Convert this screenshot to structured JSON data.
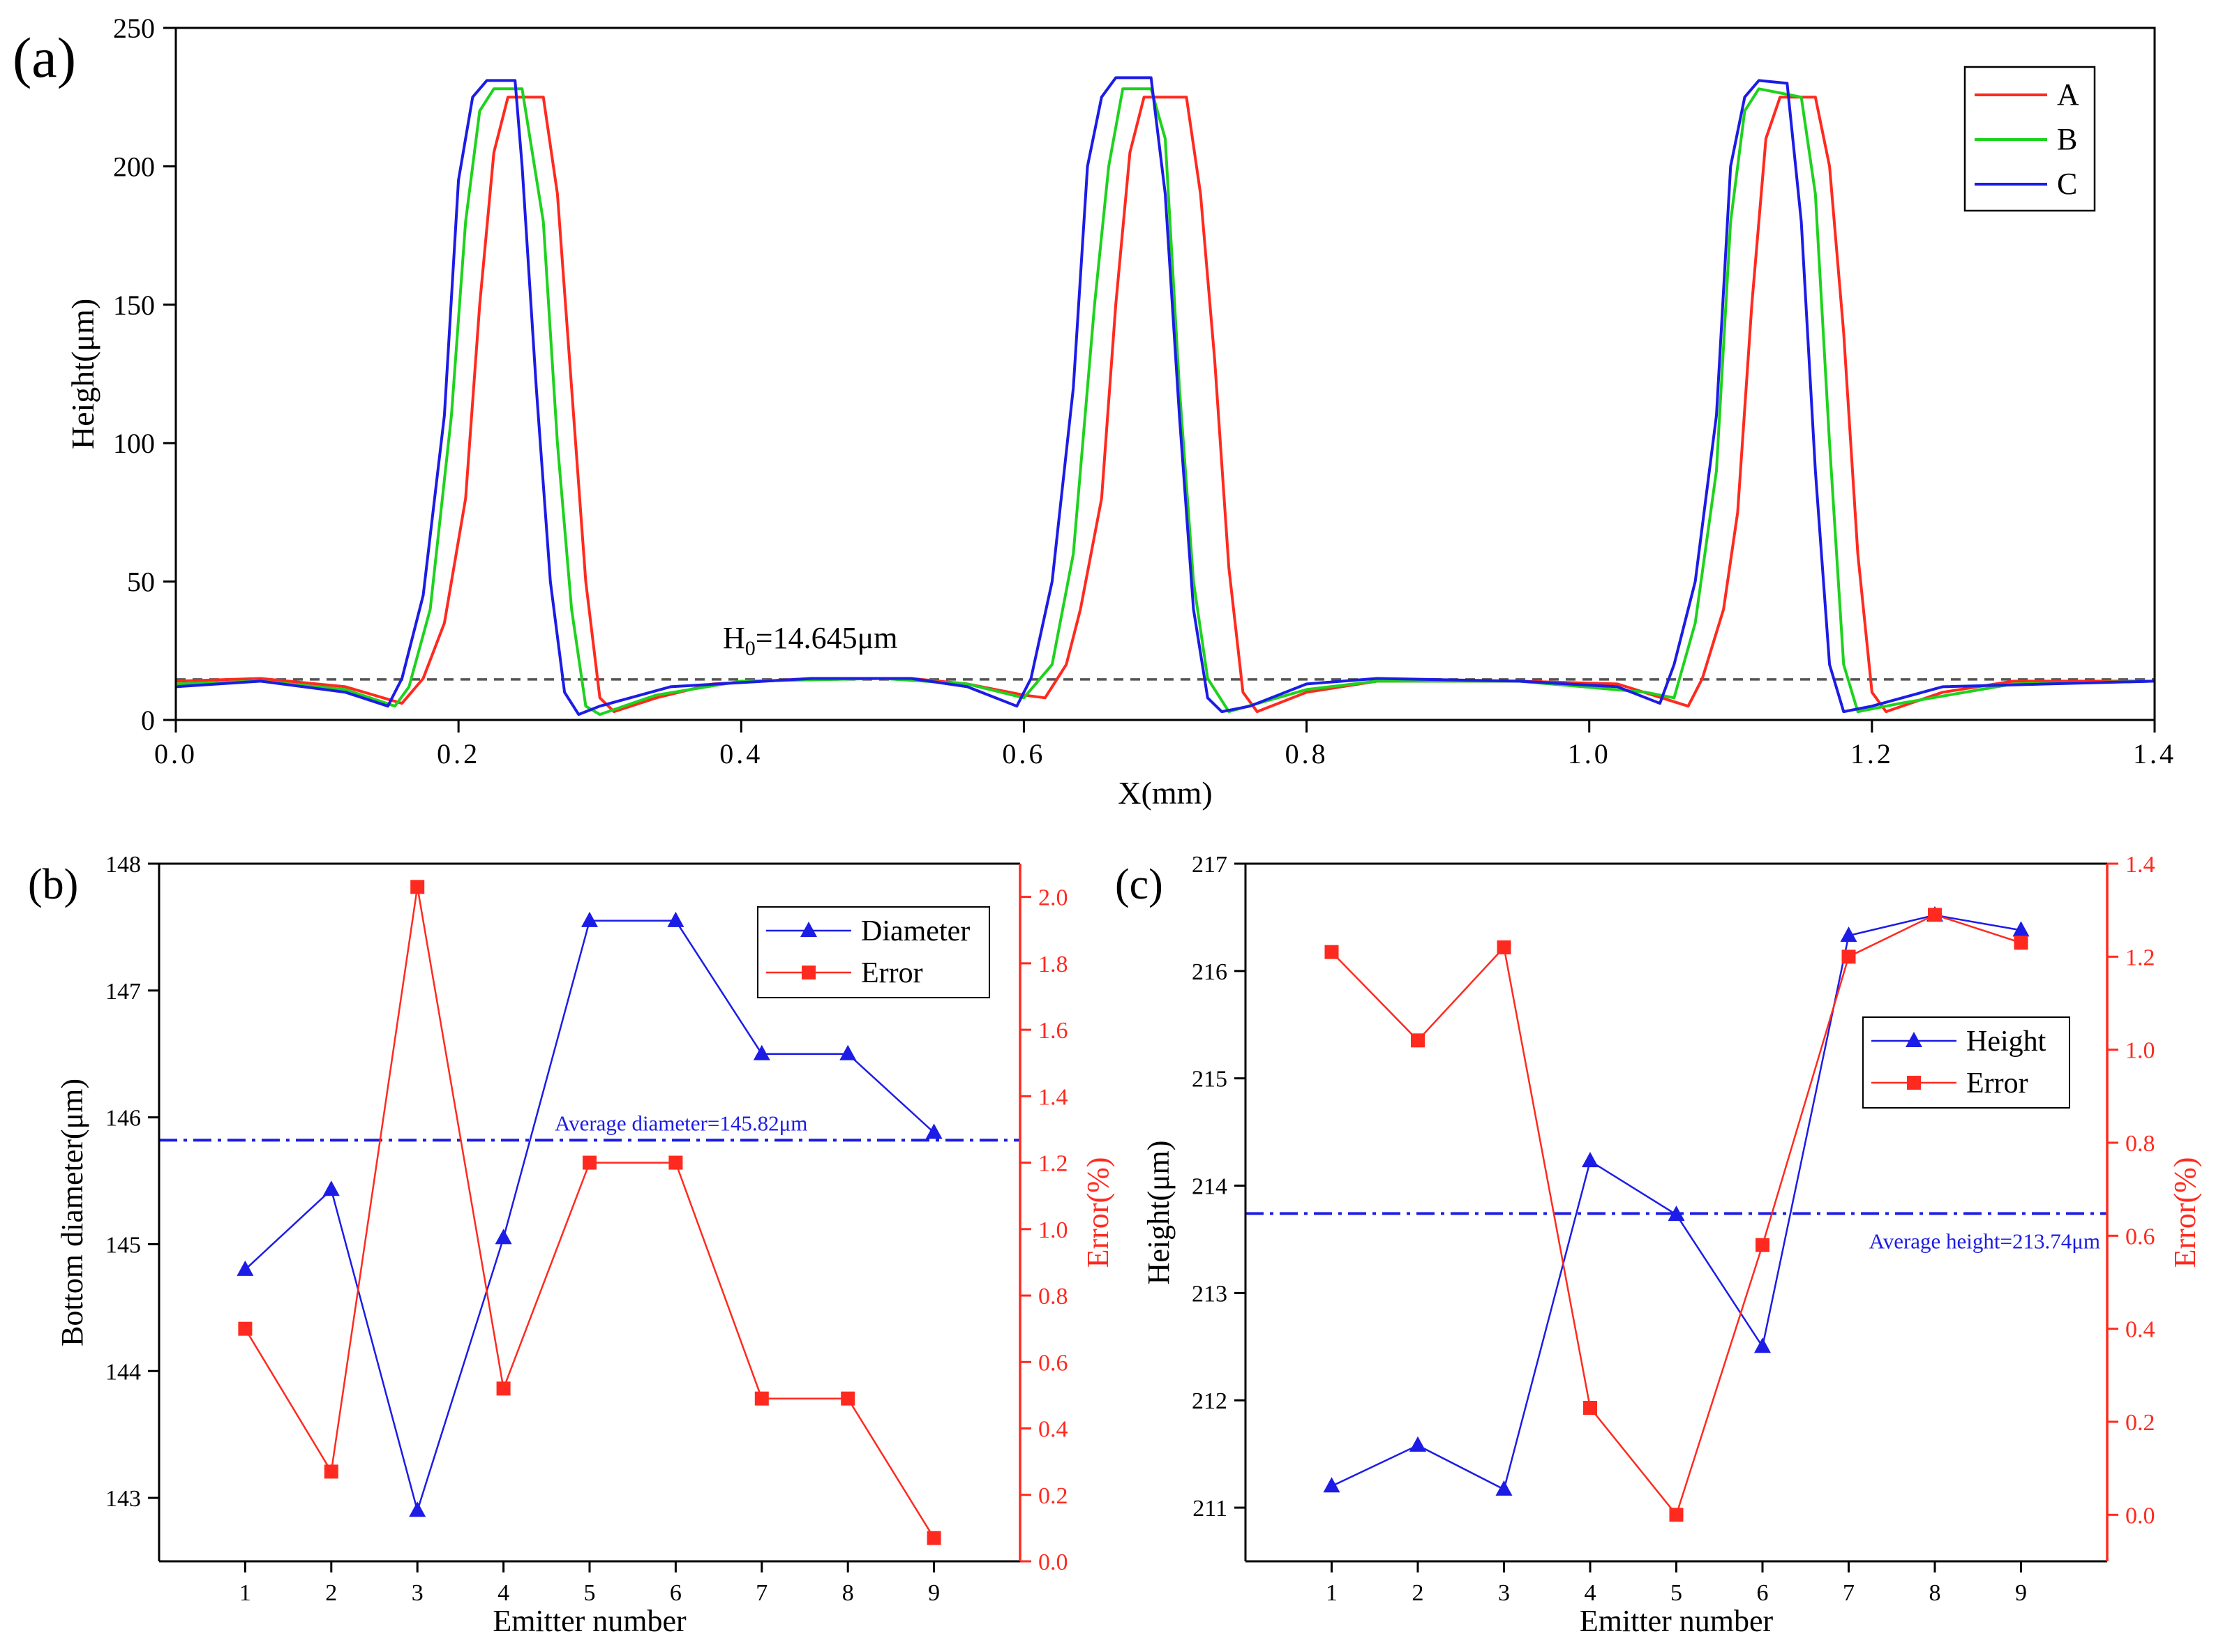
{
  "panel_labels": {
    "a": "(a)",
    "b": "(b)",
    "c": "(c)"
  },
  "colors": {
    "red": "#ff2a1f",
    "green": "#1ed21e",
    "blue": "#1c1ce6",
    "dash_gray": "#555555"
  },
  "chart_data": [
    {
      "id": "a",
      "type": "line",
      "title": "",
      "xlabel": "X(mm)",
      "ylabel": "Height(μm)",
      "xlim": [
        0,
        1.4
      ],
      "ylim": [
        0,
        250
      ],
      "xticks": [
        0.0,
        0.2,
        0.4,
        0.6,
        0.8,
        1.0,
        1.2,
        1.4
      ],
      "xtick_labels": [
        "0.0",
        "0.2",
        "0.4",
        "0.6",
        "0.8",
        "1.0",
        "1.2",
        "1.4"
      ],
      "yticks": [
        0,
        50,
        100,
        150,
        200,
        250
      ],
      "ytick_labels": [
        "0",
        "50",
        "100",
        "150",
        "200",
        "250"
      ],
      "legend": {
        "position": "top-right",
        "entries": [
          "A",
          "B",
          "C"
        ]
      },
      "reference_line": {
        "y": 14.645,
        "style": "dashed"
      },
      "annotation": {
        "base": "H",
        "sub": "0",
        "text": "=14.645μm",
        "x": 0.39,
        "y": 26
      },
      "series": [
        {
          "name": "A",
          "color": "#ff2a1f",
          "points": [
            [
              0.0,
              14
            ],
            [
              0.06,
              15
            ],
            [
              0.12,
              12
            ],
            [
              0.16,
              6
            ],
            [
              0.175,
              15
            ],
            [
              0.19,
              35
            ],
            [
              0.205,
              80
            ],
            [
              0.215,
              150
            ],
            [
              0.225,
              205
            ],
            [
              0.235,
              225
            ],
            [
              0.26,
              225
            ],
            [
              0.27,
              190
            ],
            [
              0.28,
              120
            ],
            [
              0.29,
              50
            ],
            [
              0.3,
              8
            ],
            [
              0.31,
              3
            ],
            [
              0.34,
              8
            ],
            [
              0.38,
              13
            ],
            [
              0.45,
              15
            ],
            [
              0.52,
              15
            ],
            [
              0.56,
              13
            ],
            [
              0.6,
              9
            ],
            [
              0.615,
              8
            ],
            [
              0.63,
              20
            ],
            [
              0.64,
              40
            ],
            [
              0.655,
              80
            ],
            [
              0.665,
              150
            ],
            [
              0.675,
              205
            ],
            [
              0.685,
              225
            ],
            [
              0.715,
              225
            ],
            [
              0.725,
              190
            ],
            [
              0.735,
              130
            ],
            [
              0.745,
              55
            ],
            [
              0.755,
              10
            ],
            [
              0.765,
              3
            ],
            [
              0.8,
              10
            ],
            [
              0.85,
              14
            ],
            [
              0.95,
              14
            ],
            [
              1.02,
              13
            ],
            [
              1.07,
              5
            ],
            [
              1.08,
              15
            ],
            [
              1.095,
              40
            ],
            [
              1.105,
              75
            ],
            [
              1.115,
              150
            ],
            [
              1.125,
              210
            ],
            [
              1.135,
              225
            ],
            [
              1.16,
              225
            ],
            [
              1.17,
              200
            ],
            [
              1.18,
              140
            ],
            [
              1.19,
              60
            ],
            [
              1.2,
              10
            ],
            [
              1.21,
              3
            ],
            [
              1.25,
              10
            ],
            [
              1.3,
              14
            ],
            [
              1.4,
              14
            ]
          ]
        },
        {
          "name": "B",
          "color": "#1ed21e",
          "points": [
            [
              0.0,
              13
            ],
            [
              0.06,
              14
            ],
            [
              0.12,
              11
            ],
            [
              0.155,
              5
            ],
            [
              0.165,
              12
            ],
            [
              0.18,
              40
            ],
            [
              0.195,
              110
            ],
            [
              0.205,
              180
            ],
            [
              0.215,
              220
            ],
            [
              0.225,
              228
            ],
            [
              0.245,
              228
            ],
            [
              0.26,
              180
            ],
            [
              0.27,
              100
            ],
            [
              0.28,
              40
            ],
            [
              0.29,
              5
            ],
            [
              0.3,
              2
            ],
            [
              0.34,
              9
            ],
            [
              0.4,
              14
            ],
            [
              0.5,
              15
            ],
            [
              0.56,
              13
            ],
            [
              0.6,
              8
            ],
            [
              0.62,
              20
            ],
            [
              0.635,
              60
            ],
            [
              0.65,
              150
            ],
            [
              0.66,
              200
            ],
            [
              0.67,
              228
            ],
            [
              0.69,
              228
            ],
            [
              0.7,
              210
            ],
            [
              0.71,
              120
            ],
            [
              0.72,
              50
            ],
            [
              0.73,
              15
            ],
            [
              0.745,
              3
            ],
            [
              0.8,
              11
            ],
            [
              0.85,
              14
            ],
            [
              0.95,
              14
            ],
            [
              1.04,
              10
            ],
            [
              1.06,
              8
            ],
            [
              1.075,
              35
            ],
            [
              1.09,
              90
            ],
            [
              1.1,
              180
            ],
            [
              1.11,
              220
            ],
            [
              1.12,
              228
            ],
            [
              1.15,
              225
            ],
            [
              1.16,
              190
            ],
            [
              1.17,
              100
            ],
            [
              1.18,
              20
            ],
            [
              1.19,
              3
            ],
            [
              1.22,
              6
            ],
            [
              1.3,
              13
            ],
            [
              1.4,
              14
            ]
          ]
        },
        {
          "name": "C",
          "color": "#1c1ce6",
          "points": [
            [
              0.0,
              12
            ],
            [
              0.06,
              14
            ],
            [
              0.12,
              10
            ],
            [
              0.15,
              5
            ],
            [
              0.16,
              15
            ],
            [
              0.175,
              45
            ],
            [
              0.19,
              110
            ],
            [
              0.2,
              195
            ],
            [
              0.21,
              225
            ],
            [
              0.22,
              231
            ],
            [
              0.24,
              231
            ],
            [
              0.245,
              200
            ],
            [
              0.255,
              120
            ],
            [
              0.265,
              50
            ],
            [
              0.275,
              10
            ],
            [
              0.285,
              2
            ],
            [
              0.3,
              5
            ],
            [
              0.35,
              12
            ],
            [
              0.45,
              15
            ],
            [
              0.52,
              15
            ],
            [
              0.56,
              12
            ],
            [
              0.595,
              5
            ],
            [
              0.605,
              15
            ],
            [
              0.62,
              50
            ],
            [
              0.635,
              120
            ],
            [
              0.645,
              200
            ],
            [
              0.655,
              225
            ],
            [
              0.665,
              232
            ],
            [
              0.69,
              232
            ],
            [
              0.7,
              190
            ],
            [
              0.71,
              110
            ],
            [
              0.72,
              40
            ],
            [
              0.73,
              8
            ],
            [
              0.74,
              3
            ],
            [
              0.76,
              5
            ],
            [
              0.8,
              13
            ],
            [
              0.85,
              15
            ],
            [
              0.95,
              14
            ],
            [
              1.02,
              12
            ],
            [
              1.05,
              6
            ],
            [
              1.06,
              20
            ],
            [
              1.075,
              50
            ],
            [
              1.09,
              110
            ],
            [
              1.1,
              200
            ],
            [
              1.11,
              225
            ],
            [
              1.12,
              231
            ],
            [
              1.14,
              230
            ],
            [
              1.15,
              180
            ],
            [
              1.16,
              90
            ],
            [
              1.17,
              20
            ],
            [
              1.18,
              3
            ],
            [
              1.2,
              5
            ],
            [
              1.25,
              12
            ],
            [
              1.4,
              14
            ]
          ]
        }
      ]
    },
    {
      "id": "b",
      "type": "line",
      "title": "",
      "xlabel": "Emitter number",
      "ylabel": "Bottom diameter(μm)",
      "y2label": "Error(%)",
      "xlim": [
        0,
        10
      ],
      "ylim": [
        142.5,
        148
      ],
      "y2lim": [
        0,
        2.1
      ],
      "xticks": [
        1,
        2,
        3,
        4,
        5,
        6,
        7,
        8,
        9
      ],
      "xtick_labels": [
        "1",
        "2",
        "3",
        "4",
        "5",
        "6",
        "7",
        "8",
        "9"
      ],
      "yticks": [
        143,
        144,
        145,
        146,
        147,
        148
      ],
      "ytick_labels": [
        "143",
        "144",
        "145",
        "146",
        "147",
        "148"
      ],
      "y2ticks": [
        0.0,
        0.2,
        0.4,
        0.6,
        0.8,
        1.0,
        1.2,
        1.4,
        1.6,
        1.8,
        2.0
      ],
      "y2tick_labels": [
        "0.0",
        "0.2",
        "0.4",
        "0.6",
        "0.8",
        "1.0",
        "1.2",
        "1.4",
        "1.6",
        "1.8",
        "2.0"
      ],
      "legend": {
        "position": "top-right",
        "entries": [
          "Diameter",
          "Error"
        ]
      },
      "reference_line": {
        "y": 145.82,
        "style": "dash-dot",
        "label": "Average diameter=145.82μm"
      },
      "series": [
        {
          "name": "Diameter",
          "axis": "left",
          "marker": "triangle",
          "color": "#1c1ce6",
          "x": [
            1,
            2,
            3,
            4,
            5,
            6,
            7,
            8,
            9
          ],
          "values": [
            144.8,
            145.43,
            142.9,
            145.05,
            147.55,
            147.55,
            146.5,
            146.5,
            145.88
          ]
        },
        {
          "name": "Error",
          "axis": "right",
          "marker": "square",
          "color": "#ff2a1f",
          "x": [
            1,
            2,
            3,
            4,
            5,
            6,
            7,
            8,
            9
          ],
          "values": [
            0.7,
            0.27,
            2.03,
            0.52,
            1.2,
            1.2,
            0.49,
            0.49,
            0.07
          ]
        }
      ]
    },
    {
      "id": "c",
      "type": "line",
      "title": "",
      "xlabel": "Emitter number",
      "ylabel": "Height(μm)",
      "y2label": "Error(%)",
      "xlim": [
        0,
        10
      ],
      "ylim": [
        210.5,
        217
      ],
      "y2lim": [
        -0.1,
        1.4
      ],
      "xticks": [
        1,
        2,
        3,
        4,
        5,
        6,
        7,
        8,
        9
      ],
      "xtick_labels": [
        "1",
        "2",
        "3",
        "4",
        "5",
        "6",
        "7",
        "8",
        "9"
      ],
      "yticks": [
        211,
        212,
        213,
        214,
        215,
        216,
        217
      ],
      "ytick_labels": [
        "211",
        "212",
        "213",
        "214",
        "215",
        "216",
        "217"
      ],
      "y2ticks": [
        0.0,
        0.2,
        0.4,
        0.6,
        0.8,
        1.0,
        1.2,
        1.4
      ],
      "y2tick_labels": [
        "0.0",
        "0.2",
        "0.4",
        "0.6",
        "0.8",
        "1.0",
        "1.2",
        "1.4"
      ],
      "legend": {
        "position": "top-right",
        "entries": [
          "Height",
          "Error"
        ]
      },
      "reference_line": {
        "y": 213.74,
        "style": "dash-dot",
        "label": "Average height=213.74μm"
      },
      "series": [
        {
          "name": "Height",
          "axis": "left",
          "marker": "triangle",
          "color": "#1c1ce6",
          "x": [
            1,
            2,
            3,
            4,
            5,
            6,
            7,
            8,
            9
          ],
          "values": [
            211.2,
            211.58,
            211.17,
            214.23,
            213.73,
            212.5,
            216.33,
            216.52,
            216.38
          ]
        },
        {
          "name": "Error",
          "axis": "right",
          "marker": "square",
          "color": "#ff2a1f",
          "x": [
            1,
            2,
            3,
            4,
            5,
            6,
            7,
            8,
            9
          ],
          "values": [
            1.21,
            1.02,
            1.22,
            0.23,
            0.0,
            0.58,
            1.2,
            1.29,
            1.23
          ]
        }
      ]
    }
  ]
}
